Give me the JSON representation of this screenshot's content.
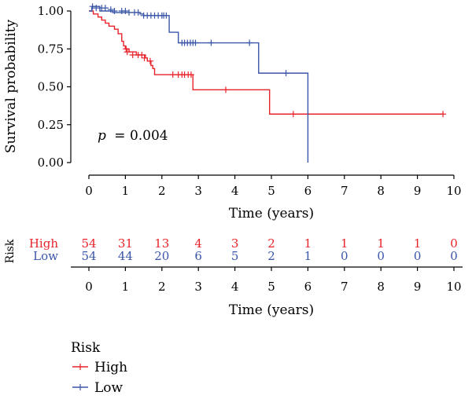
{
  "colors": {
    "high": "#e8232a",
    "low": "#3a56a8",
    "axis": "#000000"
  },
  "chart_data": [
    {
      "type": "line",
      "subtype": "kaplan-meier",
      "ylabel": "Survival probability",
      "xlabel": "Time (years)",
      "xlim": [
        0,
        10
      ],
      "ylim": [
        0,
        1
      ],
      "xticks": [
        "0",
        "1",
        "2",
        "3",
        "4",
        "5",
        "6",
        "7",
        "8",
        "9",
        "10"
      ],
      "yticks": [
        "0.00",
        "0.25",
        "0.50",
        "0.75",
        "1.00"
      ],
      "annotation": {
        "p_label": "p",
        "p_value": "= 0.004"
      },
      "series": [
        {
          "name": "High",
          "color": "#e8232a",
          "steps": [
            [
              0,
              1.0
            ],
            [
              0.12,
              0.98
            ],
            [
              0.25,
              0.96
            ],
            [
              0.35,
              0.94
            ],
            [
              0.45,
              0.92
            ],
            [
              0.55,
              0.9
            ],
            [
              0.7,
              0.88
            ],
            [
              0.8,
              0.85
            ],
            [
              0.9,
              0.8
            ],
            [
              0.95,
              0.77
            ],
            [
              1.0,
              0.75
            ],
            [
              1.1,
              0.73
            ],
            [
              1.3,
              0.71
            ],
            [
              1.55,
              0.69
            ],
            [
              1.6,
              0.67
            ],
            [
              1.7,
              0.64
            ],
            [
              1.75,
              0.62
            ],
            [
              1.8,
              0.58
            ],
            [
              2.85,
              0.48
            ],
            [
              4.95,
              0.32
            ],
            [
              9.7,
              0.32
            ]
          ],
          "censor": [
            [
              1.02,
              0.75
            ],
            [
              1.05,
              0.73
            ],
            [
              1.2,
              0.71
            ],
            [
              1.35,
              0.71
            ],
            [
              1.45,
              0.71
            ],
            [
              1.52,
              0.69
            ],
            [
              1.68,
              0.67
            ],
            [
              2.3,
              0.58
            ],
            [
              2.45,
              0.58
            ],
            [
              2.55,
              0.58
            ],
            [
              2.62,
              0.58
            ],
            [
              2.72,
              0.58
            ],
            [
              2.8,
              0.58
            ],
            [
              3.75,
              0.48
            ],
            [
              5.6,
              0.32
            ],
            [
              9.7,
              0.32
            ]
          ]
        },
        {
          "name": "Low",
          "color": "#3a56a8",
          "steps": [
            [
              0,
              1.0
            ],
            [
              0.08,
              1.03
            ],
            [
              0.3,
              1.0
            ],
            [
              0.65,
              0.99
            ],
            [
              1.2,
              0.99
            ],
            [
              1.4,
              0.98
            ],
            [
              1.5,
              0.97
            ],
            [
              2.2,
              0.97
            ],
            [
              2.2,
              0.86
            ],
            [
              2.4,
              0.86
            ],
            [
              2.45,
              0.79
            ],
            [
              4.6,
              0.79
            ],
            [
              4.65,
              0.59
            ],
            [
              6.0,
              0.59
            ],
            [
              6.0,
              0.0
            ]
          ],
          "censor": [
            [
              0.1,
              1.03
            ],
            [
              0.2,
              1.02
            ],
            [
              0.35,
              1.02
            ],
            [
              0.45,
              1.02
            ],
            [
              0.6,
              1.01
            ],
            [
              0.7,
              1.0
            ],
            [
              0.9,
              1.0
            ],
            [
              1.0,
              1.0
            ],
            [
              1.1,
              0.99
            ],
            [
              1.25,
              0.99
            ],
            [
              1.35,
              0.99
            ],
            [
              1.5,
              0.97
            ],
            [
              1.6,
              0.97
            ],
            [
              1.7,
              0.97
            ],
            [
              1.8,
              0.97
            ],
            [
              1.9,
              0.97
            ],
            [
              2.0,
              0.97
            ],
            [
              2.05,
              0.97
            ],
            [
              2.12,
              0.97
            ],
            [
              2.55,
              0.79
            ],
            [
              2.62,
              0.79
            ],
            [
              2.7,
              0.79
            ],
            [
              2.78,
              0.79
            ],
            [
              2.85,
              0.79
            ],
            [
              2.92,
              0.79
            ],
            [
              3.35,
              0.79
            ],
            [
              4.4,
              0.79
            ],
            [
              5.4,
              0.59
            ]
          ]
        }
      ]
    },
    {
      "type": "table",
      "title": "Risk",
      "xlabel": "Time (years)",
      "columns": [
        "0",
        "1",
        "2",
        "3",
        "4",
        "5",
        "6",
        "7",
        "8",
        "9",
        "10"
      ],
      "rows": [
        {
          "name": "High",
          "color": "#e8232a",
          "values": [
            "54",
            "31",
            "13",
            "4",
            "3",
            "2",
            "1",
            "1",
            "1",
            "1",
            "0"
          ]
        },
        {
          "name": "Low",
          "color": "#3a56a8",
          "values": [
            "54",
            "44",
            "20",
            "6",
            "5",
            "2",
            "1",
            "0",
            "0",
            "0",
            "0"
          ]
        }
      ]
    }
  ],
  "legend": {
    "title": "Risk",
    "items": [
      {
        "label": "High",
        "color": "#e8232a"
      },
      {
        "label": "Low",
        "color": "#3a56a8"
      }
    ]
  }
}
